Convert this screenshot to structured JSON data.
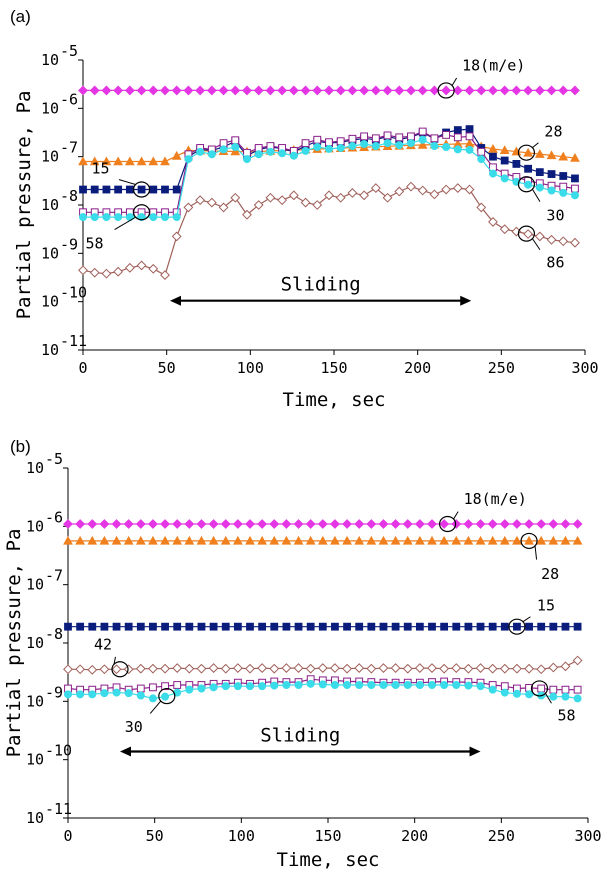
{
  "colors": {
    "m18": "#e436e4",
    "m28": "#f07f1e",
    "m15": "#0b1d7c",
    "m30": "#39dce8",
    "m58": "#8a1e8a",
    "m86": "#a0605a",
    "m42": "#a0605a",
    "axis": "#000000"
  },
  "chart_data": [
    {
      "type": "line",
      "panel_label": "(a)",
      "xlabel": "Time, sec",
      "ylabel": "Partial pressure, Pa",
      "xlim": [
        0,
        300
      ],
      "ylim_log10": [
        -11,
        -5
      ],
      "yscale": "log",
      "x_ticks": [
        "0",
        "50",
        "100",
        "150",
        "200",
        "250",
        "300"
      ],
      "y_tick_base": "10",
      "y_tick_exponents": [
        "-5",
        "-6",
        "-7",
        "-8",
        "-9",
        "-10",
        "-11"
      ],
      "annotation": {
        "text": "Sliding",
        "x_start": 52,
        "x_end": 232,
        "y_log": -9.98
      },
      "series": [
        {
          "name": "18 (m/e)",
          "key": "m18",
          "marker": "diamond-filled",
          "x": [
            0,
            300
          ],
          "y_log": [
            -5.63,
            -5.63
          ],
          "uniform_step": 7
        },
        {
          "name": "28",
          "key": "m28",
          "marker": "triangle-filled",
          "x": [
            0,
            50,
            62,
            100,
            200,
            232,
            242,
            300
          ],
          "y_log": [
            -7.1,
            -7.1,
            -6.87,
            -6.9,
            -6.76,
            -6.73,
            -6.83,
            -7.05
          ],
          "uniform_step": 7
        },
        {
          "name": "15",
          "key": "m15",
          "marker": "square-filled",
          "x": [
            0,
            7,
            14,
            21,
            28,
            35,
            42,
            49,
            56,
            63,
            70,
            77,
            84,
            91,
            98,
            105,
            112,
            119,
            126,
            133,
            140,
            147,
            154,
            161,
            168,
            175,
            182,
            189,
            196,
            203,
            210,
            217,
            224,
            231,
            238,
            245,
            252,
            259,
            266,
            273,
            280,
            287,
            294
          ],
          "y_log": [
            -7.68,
            -7.68,
            -7.68,
            -7.68,
            -7.68,
            -7.68,
            -7.68,
            -7.68,
            -7.68,
            -7.0,
            -6.85,
            -6.87,
            -6.8,
            -6.68,
            -6.98,
            -6.85,
            -6.8,
            -6.83,
            -6.9,
            -6.78,
            -6.68,
            -6.72,
            -6.7,
            -6.66,
            -6.62,
            -6.65,
            -6.58,
            -6.64,
            -6.6,
            -6.5,
            -6.63,
            -6.5,
            -6.45,
            -6.43,
            -6.82,
            -7.0,
            -7.08,
            -7.15,
            -7.25,
            -7.32,
            -7.36,
            -7.4,
            -7.45
          ]
        },
        {
          "name": "58",
          "key": "m58",
          "marker": "square-open",
          "x": [
            0,
            7,
            14,
            21,
            28,
            35,
            42,
            49,
            56,
            63,
            70,
            77,
            84,
            91,
            98,
            105,
            112,
            119,
            126,
            133,
            140,
            147,
            154,
            161,
            168,
            175,
            182,
            189,
            196,
            203,
            210,
            217,
            224,
            231,
            238,
            245,
            252,
            259,
            266,
            273,
            280,
            287,
            294
          ],
          "y_log": [
            -8.15,
            -8.15,
            -8.15,
            -8.15,
            -8.15,
            -8.15,
            -8.15,
            -8.15,
            -8.15,
            -6.95,
            -6.82,
            -6.85,
            -6.72,
            -6.66,
            -6.92,
            -6.82,
            -6.78,
            -6.82,
            -6.88,
            -6.72,
            -6.65,
            -6.7,
            -6.68,
            -6.63,
            -6.58,
            -6.62,
            -6.56,
            -6.6,
            -6.58,
            -6.48,
            -6.62,
            -6.55,
            -6.6,
            -6.58,
            -6.9,
            -7.22,
            -7.35,
            -7.42,
            -7.5,
            -7.55,
            -7.6,
            -7.62,
            -7.66
          ]
        },
        {
          "name": "30",
          "key": "m30",
          "marker": "circle-filled",
          "x": [
            0,
            7,
            14,
            21,
            28,
            35,
            42,
            49,
            56,
            63,
            70,
            77,
            84,
            91,
            98,
            105,
            112,
            119,
            126,
            133,
            140,
            147,
            154,
            161,
            168,
            175,
            182,
            189,
            196,
            203,
            210,
            217,
            224,
            231,
            238,
            245,
            252,
            259,
            266,
            273,
            280,
            287,
            294
          ],
          "y_log": [
            -8.25,
            -8.25,
            -8.25,
            -8.25,
            -8.25,
            -8.25,
            -8.25,
            -8.25,
            -8.25,
            -7.05,
            -6.9,
            -6.95,
            -6.85,
            -6.8,
            -7.05,
            -6.95,
            -6.9,
            -6.93,
            -6.98,
            -6.88,
            -6.8,
            -6.84,
            -6.82,
            -6.78,
            -6.74,
            -6.78,
            -6.72,
            -6.76,
            -6.72,
            -6.65,
            -6.78,
            -6.8,
            -6.85,
            -6.86,
            -7.05,
            -7.35,
            -7.45,
            -7.52,
            -7.58,
            -7.64,
            -7.7,
            -7.75,
            -7.8
          ]
        },
        {
          "name": "86",
          "key": "m86",
          "marker": "diamond-open",
          "x": [
            0,
            7,
            14,
            21,
            28,
            35,
            42,
            49,
            56,
            63,
            70,
            77,
            84,
            91,
            98,
            105,
            112,
            119,
            126,
            133,
            140,
            147,
            154,
            161,
            168,
            175,
            182,
            189,
            196,
            203,
            210,
            217,
            224,
            231,
            238,
            245,
            252,
            259,
            266,
            273,
            280,
            287,
            294
          ],
          "y_log": [
            -9.35,
            -9.4,
            -9.42,
            -9.38,
            -9.3,
            -9.25,
            -9.32,
            -9.45,
            -8.65,
            -8.05,
            -7.9,
            -7.95,
            -8.05,
            -7.85,
            -8.2,
            -8.0,
            -7.85,
            -7.9,
            -7.8,
            -7.95,
            -8.0,
            -7.8,
            -7.85,
            -7.75,
            -7.8,
            -7.65,
            -7.85,
            -7.72,
            -7.62,
            -7.7,
            -7.78,
            -7.68,
            -7.65,
            -7.68,
            -8.05,
            -8.35,
            -8.5,
            -8.55,
            -8.6,
            -8.65,
            -8.72,
            -8.75,
            -8.78
          ]
        }
      ],
      "labels": [
        {
          "text": "18(m/e)",
          "series": "m18",
          "x": 217
        },
        {
          "text": "28",
          "series": "m28",
          "x": 265
        },
        {
          "text": "15",
          "series": "m15",
          "x": 35
        },
        {
          "text": "30",
          "series": "m30",
          "x": 265
        },
        {
          "text": "58",
          "series": "m58",
          "x": 35
        },
        {
          "text": "86",
          "series": "m86",
          "x": 265
        }
      ]
    },
    {
      "type": "line",
      "panel_label": "(b)",
      "xlabel": "Time, sec",
      "ylabel": "Partial pressure, Pa",
      "xlim": [
        0,
        300
      ],
      "ylim_log10": [
        -11,
        -5
      ],
      "yscale": "log",
      "x_ticks": [
        "0",
        "50",
        "100",
        "150",
        "200",
        "250",
        "300"
      ],
      "y_tick_base": "10",
      "y_tick_exponents": [
        "-5",
        "-6",
        "-7",
        "-8",
        "-9",
        "-10",
        "-11"
      ],
      "annotation": {
        "text": "Sliding",
        "x_start": 30,
        "x_end": 238,
        "y_log": -9.86
      },
      "series": [
        {
          "name": "18 (m/e)",
          "key": "m18",
          "marker": "diamond-filled",
          "x": [
            0,
            295
          ],
          "y_log": [
            -5.96,
            -5.96
          ],
          "uniform_step": 7
        },
        {
          "name": "28",
          "key": "m28",
          "marker": "triangle-filled",
          "x": [
            0,
            295
          ],
          "y_log": [
            -6.25,
            -6.25
          ],
          "uniform_step": 7
        },
        {
          "name": "15",
          "key": "m15",
          "marker": "square-filled",
          "x": [
            0,
            295
          ],
          "y_log": [
            -7.72,
            -7.72
          ],
          "uniform_step": 7
        },
        {
          "name": "42",
          "key": "m42",
          "marker": "diamond-open",
          "x": [
            0,
            7,
            14,
            21,
            28,
            35,
            42,
            49,
            56,
            63,
            70,
            77,
            84,
            91,
            98,
            105,
            112,
            119,
            126,
            133,
            140,
            147,
            154,
            161,
            168,
            175,
            182,
            189,
            196,
            203,
            210,
            217,
            224,
            231,
            238,
            245,
            252,
            259,
            266,
            273,
            280,
            287,
            294
          ],
          "y_log": [
            -8.45,
            -8.45,
            -8.46,
            -8.45,
            -8.45,
            -8.45,
            -8.44,
            -8.44,
            -8.44,
            -8.43,
            -8.44,
            -8.44,
            -8.43,
            -8.44,
            -8.43,
            -8.44,
            -8.43,
            -8.44,
            -8.43,
            -8.43,
            -8.44,
            -8.43,
            -8.43,
            -8.44,
            -8.43,
            -8.44,
            -8.43,
            -8.43,
            -8.44,
            -8.43,
            -8.43,
            -8.44,
            -8.43,
            -8.44,
            -8.43,
            -8.44,
            -8.44,
            -8.44,
            -8.44,
            -8.45,
            -8.42,
            -8.4,
            -8.3
          ]
        },
        {
          "name": "58",
          "key": "m58",
          "marker": "square-open",
          "x": [
            0,
            7,
            14,
            21,
            28,
            35,
            42,
            49,
            56,
            63,
            70,
            77,
            84,
            91,
            98,
            105,
            112,
            119,
            126,
            133,
            140,
            147,
            154,
            161,
            168,
            175,
            182,
            189,
            196,
            203,
            210,
            217,
            224,
            231,
            238,
            245,
            252,
            259,
            266,
            273,
            280,
            287,
            294
          ],
          "y_log": [
            -8.78,
            -8.8,
            -8.8,
            -8.78,
            -8.76,
            -8.8,
            -8.78,
            -8.76,
            -8.74,
            -8.72,
            -8.72,
            -8.72,
            -8.7,
            -8.7,
            -8.68,
            -8.7,
            -8.68,
            -8.66,
            -8.67,
            -8.67,
            -8.62,
            -8.64,
            -8.64,
            -8.66,
            -8.66,
            -8.67,
            -8.68,
            -8.68,
            -8.68,
            -8.68,
            -8.67,
            -8.66,
            -8.67,
            -8.67,
            -8.68,
            -8.72,
            -8.74,
            -8.78,
            -8.77,
            -8.78,
            -8.8,
            -8.8,
            -8.8
          ]
        },
        {
          "name": "30",
          "key": "m30",
          "marker": "circle-filled",
          "x": [
            0,
            7,
            14,
            21,
            28,
            35,
            42,
            49,
            56,
            63,
            70,
            77,
            84,
            91,
            98,
            105,
            112,
            119,
            126,
            133,
            140,
            147,
            154,
            161,
            168,
            175,
            182,
            189,
            196,
            203,
            210,
            217,
            224,
            231,
            238,
            245,
            252,
            259,
            266,
            273,
            280,
            287,
            294
          ],
          "y_log": [
            -8.88,
            -8.88,
            -8.88,
            -8.86,
            -8.85,
            -8.86,
            -8.9,
            -8.95,
            -8.92,
            -8.85,
            -8.8,
            -8.78,
            -8.76,
            -8.74,
            -8.74,
            -8.74,
            -8.74,
            -8.73,
            -8.72,
            -8.72,
            -8.7,
            -8.71,
            -8.72,
            -8.72,
            -8.72,
            -8.72,
            -8.72,
            -8.72,
            -8.72,
            -8.72,
            -8.72,
            -8.72,
            -8.72,
            -8.73,
            -8.74,
            -8.8,
            -8.85,
            -8.87,
            -8.88,
            -8.9,
            -8.92,
            -8.92,
            -8.95
          ]
        }
      ],
      "labels": [
        {
          "text": "18(m/e)",
          "series": "m18",
          "x": 219
        },
        {
          "text": "28",
          "series": "m28",
          "x": 266
        },
        {
          "text": "15",
          "series": "m15",
          "x": 259
        },
        {
          "text": "42",
          "series": "m42",
          "x": 30
        },
        {
          "text": "58",
          "series": "m58",
          "x": 272
        },
        {
          "text": "30",
          "series": "m30",
          "x": 57
        }
      ]
    }
  ]
}
